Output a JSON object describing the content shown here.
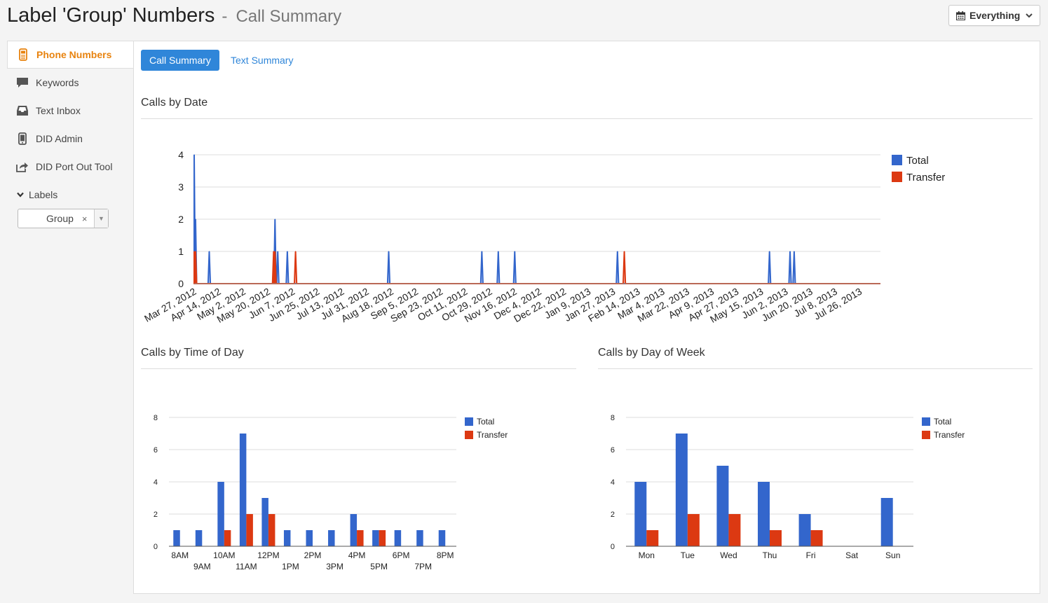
{
  "header": {
    "title": "Label 'Group' Numbers",
    "separator": "-",
    "subtitle": "Call Summary",
    "filter_label": "Everything"
  },
  "icons": {
    "calendar": "calendar-icon",
    "filter_chevron": "chevron-down-icon"
  },
  "colors": {
    "accent_orange": "#e8830f",
    "link_blue": "#2f86d9",
    "series_total": "#3366cc",
    "series_transfer": "#dc3912"
  },
  "sidebar": {
    "items": [
      {
        "label": "Phone Numbers",
        "icon": "phone-icon",
        "active": true
      },
      {
        "label": "Keywords",
        "icon": "speech-bubble-icon",
        "active": false
      },
      {
        "label": "Text Inbox",
        "icon": "inbox-icon",
        "active": false
      },
      {
        "label": "DID Admin",
        "icon": "mobile-device-icon",
        "active": false
      },
      {
        "label": "DID Port Out Tool",
        "icon": "share-arrow-icon",
        "active": false
      }
    ],
    "labels_heading": "Labels",
    "group_value": "Group",
    "group_clear": "×"
  },
  "tabs": [
    {
      "label": "Call Summary",
      "active": true
    },
    {
      "label": "Text Summary",
      "active": false
    }
  ],
  "sections": {
    "by_date": "Calls by Date",
    "by_time": "Calls by Time of Day",
    "by_week": "Calls by Day of Week"
  },
  "chart_data": [
    {
      "type": "area",
      "title": "Calls by Date",
      "ylim": [
        0,
        4
      ],
      "yticks": [
        0,
        1,
        2,
        3,
        4
      ],
      "grid": true,
      "legend": "right",
      "x_range": [
        "2012-03-27",
        "2013-08-10"
      ],
      "tick_labels": [
        "Mar 27, 2012",
        "Apr 14, 2012",
        "May 2, 2012",
        "May 20, 2012",
        "Jun 7, 2012",
        "Jun 25, 2012",
        "Jul 13, 2012",
        "Jul 31, 2012",
        "Aug 18, 2012",
        "Sep 5, 2012",
        "Sep 23, 2012",
        "Oct 11, 2012",
        "Oct 29, 2012",
        "Nov 16, 2012",
        "Dec 4, 2012",
        "Dec 22, 2012",
        "Jan 9, 2013",
        "Jan 27, 2013",
        "Feb 14, 2013",
        "Mar 4, 2013",
        "Mar 22, 2013",
        "Apr 9, 2013",
        "Apr 27, 2013",
        "May 15, 2013",
        "Jun 2, 2013",
        "Jun 20, 2013",
        "Jul 8, 2013",
        "Jul 26, 2013"
      ],
      "series": [
        {
          "name": "Total",
          "points": [
            [
              "2012-03-27",
              4
            ],
            [
              "2012-03-28",
              2
            ],
            [
              "2012-04-07",
              1
            ],
            [
              "2012-05-25",
              2
            ],
            [
              "2012-05-27",
              1
            ],
            [
              "2012-06-03",
              1
            ],
            [
              "2012-08-16",
              1
            ],
            [
              "2012-10-23",
              1
            ],
            [
              "2012-11-04",
              1
            ],
            [
              "2012-11-16",
              1
            ],
            [
              "2013-01-30",
              1
            ],
            [
              "2013-05-21",
              1
            ],
            [
              "2013-06-05",
              1
            ],
            [
              "2013-06-08",
              1
            ]
          ]
        },
        {
          "name": "Transfer",
          "points": [
            [
              "2012-03-27",
              1
            ],
            [
              "2012-03-28",
              1
            ],
            [
              "2012-05-24",
              1
            ],
            [
              "2012-05-25",
              1
            ],
            [
              "2012-06-09",
              1
            ],
            [
              "2013-02-04",
              1
            ]
          ]
        }
      ]
    },
    {
      "type": "bar",
      "title": "Calls by Time of Day",
      "categories": [
        "8AM",
        "9AM",
        "10AM",
        "11AM",
        "12PM",
        "1PM",
        "2PM",
        "3PM",
        "4PM",
        "5PM",
        "6PM",
        "7PM",
        "8PM"
      ],
      "series": [
        {
          "name": "Total",
          "values": [
            1,
            1,
            4,
            7,
            3,
            1,
            1,
            1,
            2,
            1,
            1,
            1,
            1
          ]
        },
        {
          "name": "Transfer",
          "values": [
            0,
            0,
            1,
            2,
            2,
            0,
            0,
            0,
            1,
            1,
            0,
            0,
            0
          ]
        }
      ],
      "ylim": [
        0,
        8
      ],
      "yticks": [
        0,
        2,
        4,
        6,
        8
      ],
      "grid": true,
      "legend": "right"
    },
    {
      "type": "bar",
      "title": "Calls by Day of Week",
      "categories": [
        "Mon",
        "Tue",
        "Wed",
        "Thu",
        "Fri",
        "Sat",
        "Sun"
      ],
      "series": [
        {
          "name": "Total",
          "values": [
            4,
            7,
            5,
            4,
            2,
            0,
            3
          ]
        },
        {
          "name": "Transfer",
          "values": [
            1,
            2,
            2,
            1,
            1,
            0,
            0
          ]
        }
      ],
      "ylim": [
        0,
        8
      ],
      "yticks": [
        0,
        2,
        4,
        6,
        8
      ],
      "grid": true,
      "legend": "right"
    }
  ]
}
